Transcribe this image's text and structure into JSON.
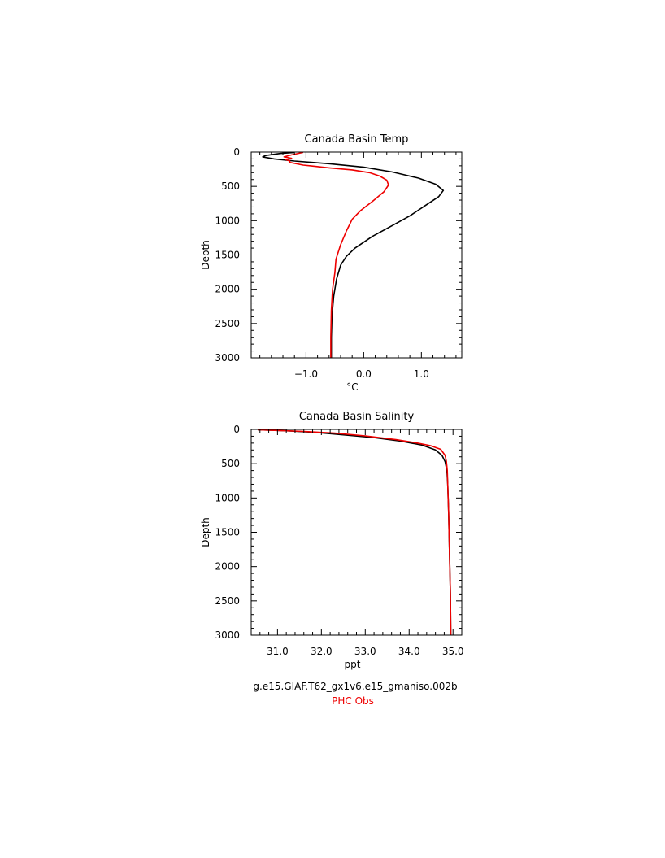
{
  "chart_data": [
    {
      "type": "line",
      "title": "Canada Basin Temp",
      "xlabel": "°C",
      "ylabel": "Depth",
      "xlim": [
        -1.95,
        1.7
      ],
      "ylim": [
        3000,
        0
      ],
      "y_inverted": true,
      "xticks": [
        -1.0,
        0.0,
        1.0
      ],
      "xtick_labels": [
        "−1.0",
        "0.0",
        "1.0"
      ],
      "yticks": [
        0,
        500,
        1000,
        1500,
        2000,
        2500,
        3000
      ],
      "ytick_labels": [
        "0",
        "500",
        "1000",
        "1500",
        "2000",
        "2500",
        "3000"
      ],
      "series": [
        {
          "name": "g.e15.GIAF.T62_gx1v6.e15_gmaniso.002b",
          "color": "#000000",
          "points": [
            [
              -1.2,
              5
            ],
            [
              -1.45,
              20
            ],
            [
              -1.7,
              50
            ],
            [
              -1.75,
              70
            ],
            [
              -1.55,
              100
            ],
            [
              -1.2,
              130
            ],
            [
              -0.6,
              170
            ],
            [
              0.0,
              220
            ],
            [
              0.5,
              290
            ],
            [
              0.95,
              380
            ],
            [
              1.25,
              470
            ],
            [
              1.38,
              560
            ],
            [
              1.3,
              650
            ],
            [
              1.05,
              790
            ],
            [
              0.8,
              930
            ],
            [
              0.5,
              1070
            ],
            [
              0.15,
              1230
            ],
            [
              -0.15,
              1400
            ],
            [
              -0.3,
              1520
            ],
            [
              -0.4,
              1650
            ],
            [
              -0.47,
              1850
            ],
            [
              -0.52,
              2100
            ],
            [
              -0.55,
              2400
            ],
            [
              -0.56,
              2700
            ],
            [
              -0.56,
              3000
            ]
          ]
        },
        {
          "name": "PHC Obs",
          "color": "#ee0000",
          "points": [
            [
              -1.05,
              5
            ],
            [
              -1.25,
              40
            ],
            [
              -1.38,
              70
            ],
            [
              -1.25,
              90
            ],
            [
              -1.35,
              110
            ],
            [
              -1.28,
              130
            ],
            [
              -1.28,
              150
            ],
            [
              -1.05,
              190
            ],
            [
              -0.6,
              230
            ],
            [
              -0.2,
              260
            ],
            [
              0.1,
              300
            ],
            [
              0.28,
              350
            ],
            [
              0.4,
              410
            ],
            [
              0.43,
              480
            ],
            [
              0.35,
              580
            ],
            [
              0.15,
              720
            ],
            [
              -0.05,
              850
            ],
            [
              -0.2,
              980
            ],
            [
              -0.3,
              1150
            ],
            [
              -0.4,
              1350
            ],
            [
              -0.48,
              1560
            ],
            [
              -0.5,
              1760
            ],
            [
              -0.54,
              2000
            ],
            [
              -0.56,
              2300
            ],
            [
              -0.57,
              2700
            ],
            [
              -0.57,
              3000
            ]
          ]
        }
      ]
    },
    {
      "type": "line",
      "title": "Canada Basin Salinity",
      "xlabel": "ppt",
      "ylabel": "Depth",
      "xlim": [
        30.4,
        35.2
      ],
      "ylim": [
        3000,
        0
      ],
      "y_inverted": true,
      "xticks": [
        31.0,
        32.0,
        33.0,
        34.0,
        35.0
      ],
      "xtick_labels": [
        "31.0",
        "32.0",
        "33.0",
        "34.0",
        "35.0"
      ],
      "yticks": [
        0,
        500,
        1000,
        1500,
        2000,
        2500,
        3000
      ],
      "ytick_labels": [
        "0",
        "500",
        "1000",
        "1500",
        "2000",
        "2500",
        "3000"
      ],
      "series": [
        {
          "name": "g.e15.GIAF.T62_gx1v6.e15_gmaniso.002b",
          "color": "#000000",
          "points": [
            [
              30.55,
              5
            ],
            [
              31.2,
              20
            ],
            [
              31.9,
              45
            ],
            [
              32.5,
              80
            ],
            [
              33.2,
              120
            ],
            [
              33.8,
              170
            ],
            [
              34.3,
              230
            ],
            [
              34.6,
              300
            ],
            [
              34.75,
              380
            ],
            [
              34.82,
              470
            ],
            [
              34.86,
              600
            ],
            [
              34.88,
              800
            ],
            [
              34.9,
              1200
            ],
            [
              34.92,
              1800
            ],
            [
              34.94,
              2400
            ],
            [
              34.95,
              3000
            ]
          ]
        },
        {
          "name": "PHC Obs",
          "color": "#ee0000",
          "points": [
            [
              30.55,
              5
            ],
            [
              31.0,
              15
            ],
            [
              31.6,
              30
            ],
            [
              32.3,
              55
            ],
            [
              33.0,
              95
            ],
            [
              33.7,
              150
            ],
            [
              34.2,
              200
            ],
            [
              34.5,
              240
            ],
            [
              34.72,
              290
            ],
            [
              34.82,
              380
            ],
            [
              34.85,
              470
            ],
            [
              34.87,
              600
            ],
            [
              34.88,
              800
            ],
            [
              34.9,
              1200
            ],
            [
              34.92,
              1800
            ],
            [
              34.94,
              2400
            ],
            [
              34.95,
              3000
            ]
          ]
        }
      ]
    }
  ],
  "legend": {
    "model_label": "g.e15.GIAF.T62_gx1v6.e15_gmaniso.002b",
    "model_color": "#000000",
    "obs_label": "PHC Obs",
    "obs_color": "#ee0000"
  }
}
